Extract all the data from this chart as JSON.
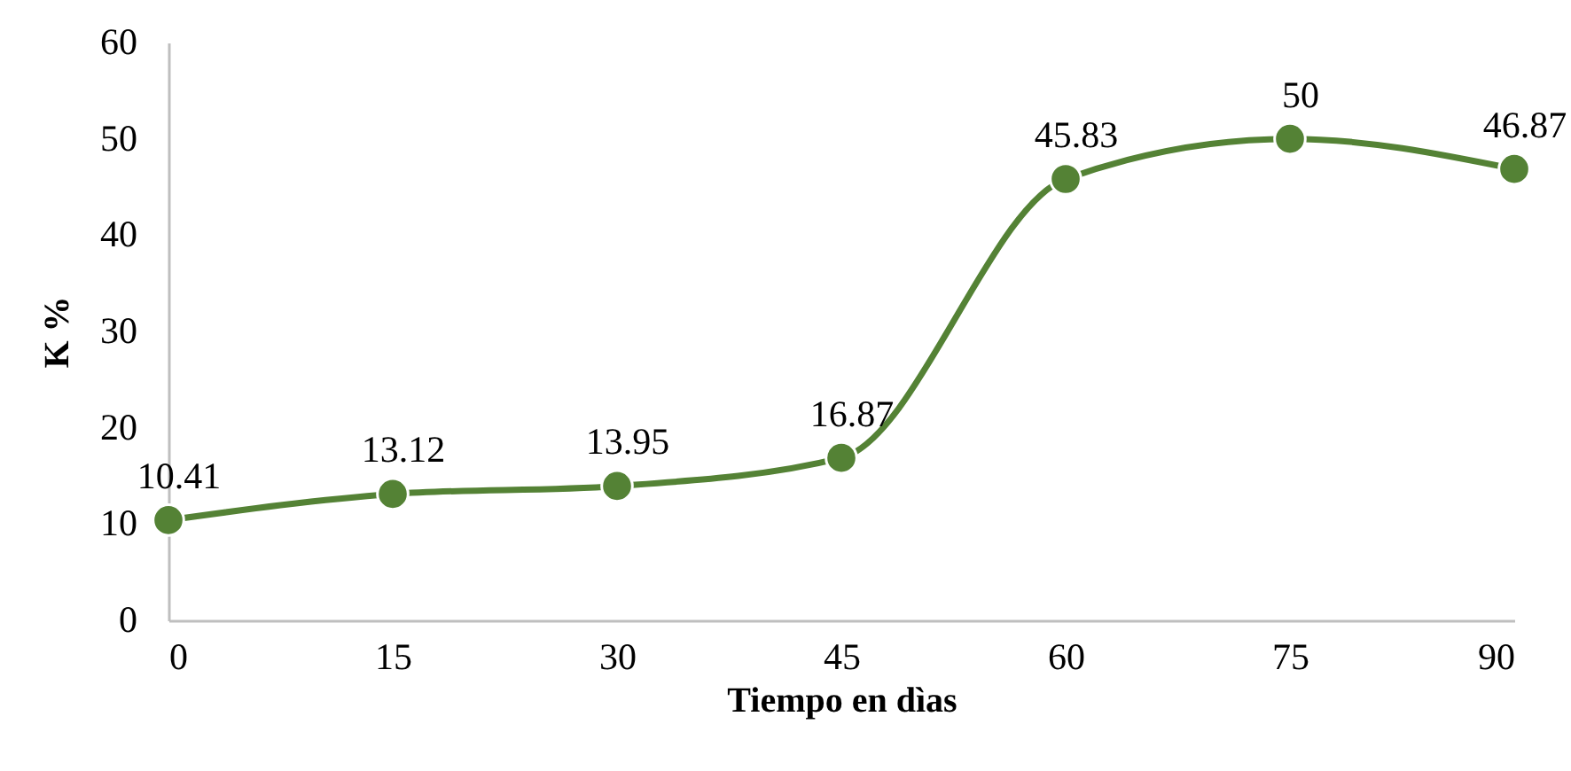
{
  "chart_data": {
    "type": "line",
    "xlabel": "Tiempo en dìas",
    "ylabel": "K %",
    "x": [
      0,
      15,
      30,
      45,
      60,
      75,
      90
    ],
    "series": [
      {
        "color": "#548235",
        "values": [
          10.41,
          13.12,
          13.95,
          16.87,
          45.83,
          50,
          46.87
        ]
      }
    ],
    "xlim": [
      0,
      90
    ],
    "xticks": [
      0,
      15,
      30,
      45,
      60,
      75,
      90
    ],
    "ylim": [
      0,
      60
    ],
    "yticks": [
      0,
      10,
      20,
      30,
      40,
      50,
      60
    ],
    "grid": false,
    "marker": "circle",
    "line_style": "solid",
    "data_labels": true
  }
}
